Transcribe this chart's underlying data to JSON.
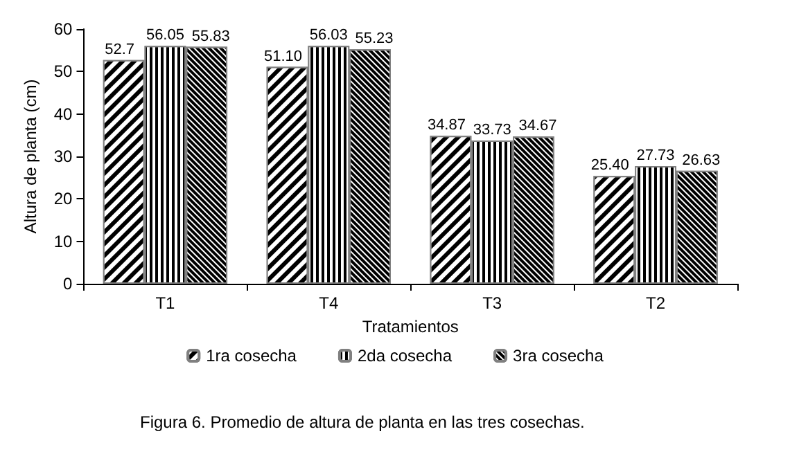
{
  "chart_data": {
    "type": "bar",
    "categories": [
      "T1",
      "T4",
      "T3",
      "T2"
    ],
    "xlabel": "Tratamientos",
    "ylabel": "Altura de planta (cm)",
    "ylim": [
      0,
      60
    ],
    "yticks": [
      0,
      10,
      20,
      30,
      40,
      50,
      60
    ],
    "grid": false,
    "legend": "bottom",
    "annotations": [
      "Figura 6. Promedio de altura de planta en las tres cosechas."
    ],
    "series": [
      {
        "name": "1ra cosecha",
        "color": "#000000",
        "values": [
          52.7,
          51.1,
          34.87,
          25.4
        ],
        "value_labels": [
          "52.7",
          "51.10",
          "34.87",
          "25.40"
        ]
      },
      {
        "name": "2da cosecha",
        "color": "#000000",
        "values": [
          56.05,
          56.03,
          33.73,
          27.73
        ],
        "value_labels": [
          "56.05",
          "56.03",
          "33.73",
          "27.73"
        ]
      },
      {
        "name": "3ra cosecha",
        "color": "#000000",
        "values": [
          55.83,
          55.23,
          34.67,
          26.63
        ],
        "value_labels": [
          "55.83",
          "55.23",
          "34.67",
          "26.63"
        ]
      }
    ]
  }
}
